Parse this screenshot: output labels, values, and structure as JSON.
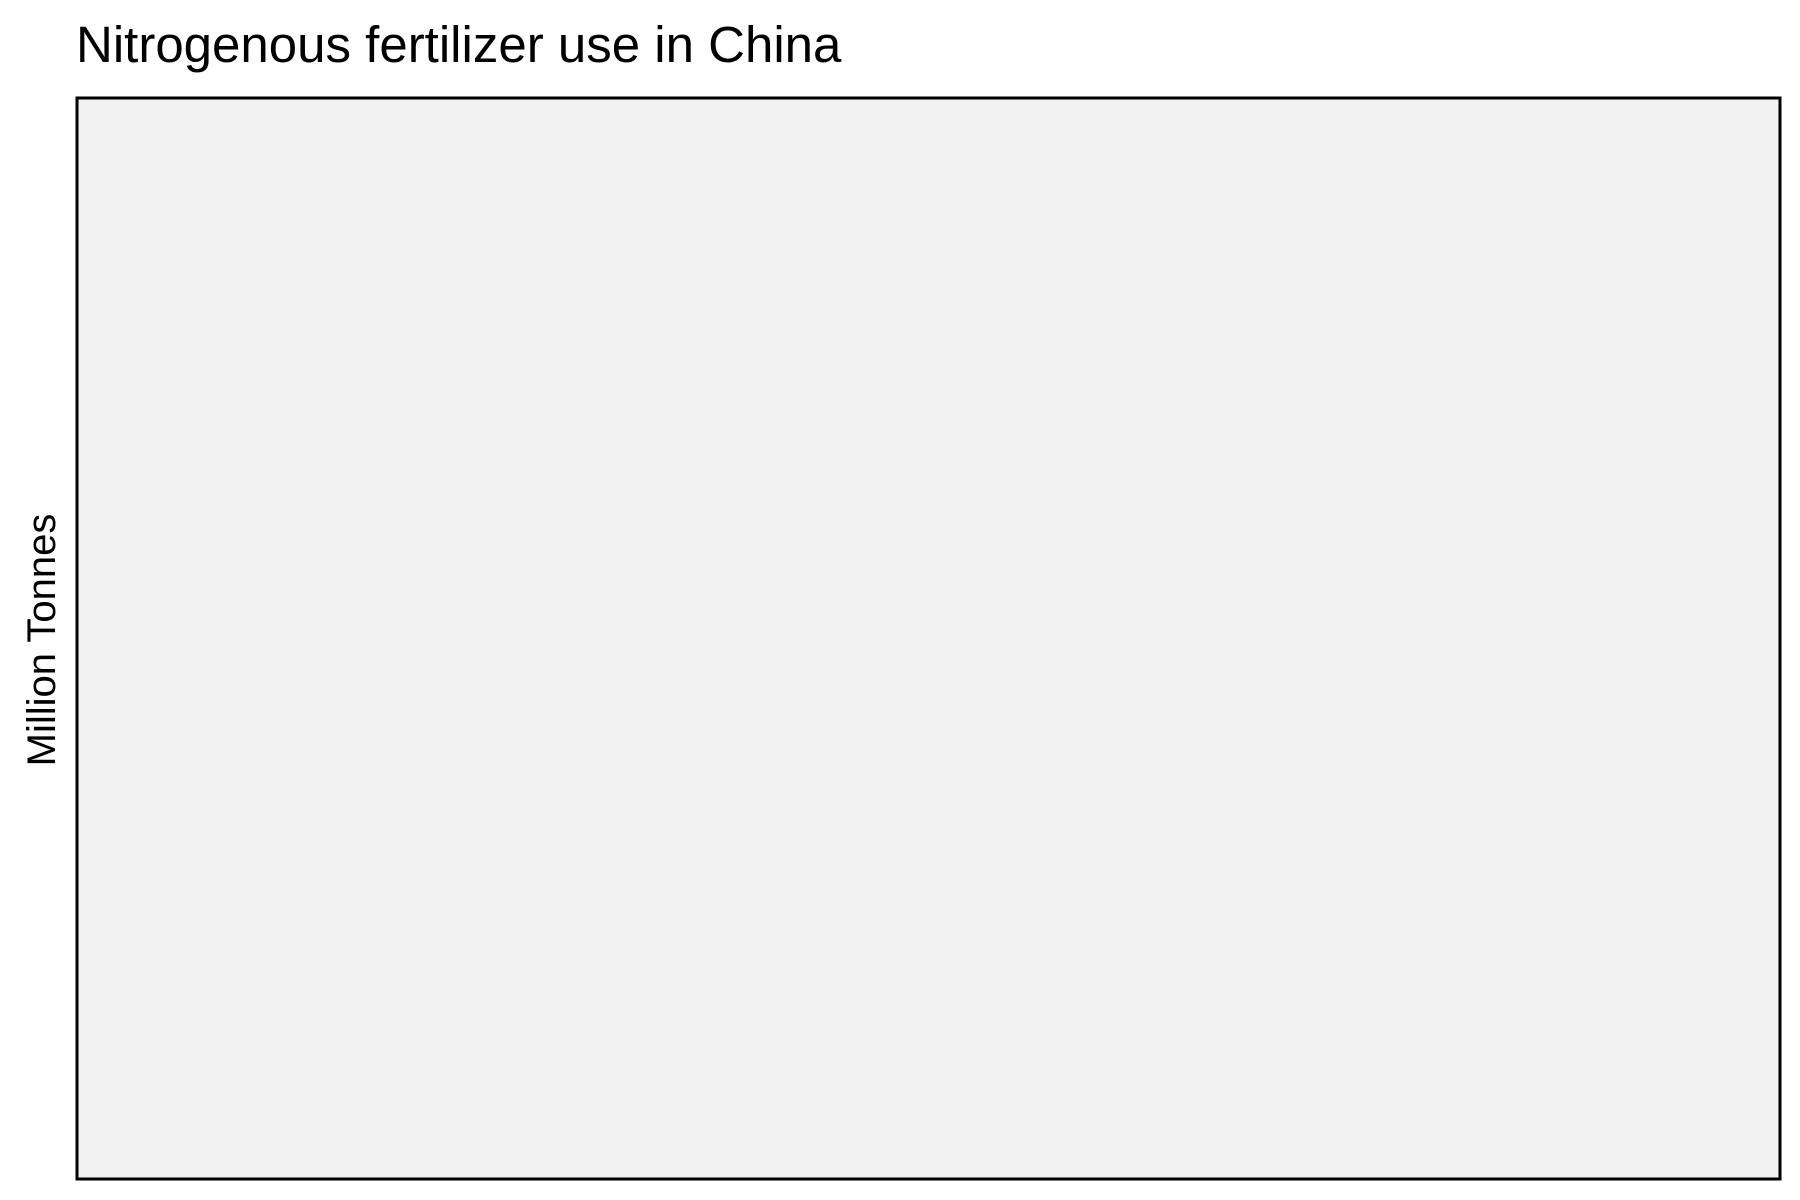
{
  "chart_data": {
    "type": "line",
    "title": "Nitrogenous fertilizer use in China",
    "xlabel": "",
    "ylabel": "Million Tonnes",
    "series": [],
    "grid": false,
    "legend": "none",
    "colors": {
      "panel_background": "#f2f2f2",
      "panel_border": "#000000",
      "text": "#000000",
      "page_background": "#ffffff"
    }
  }
}
